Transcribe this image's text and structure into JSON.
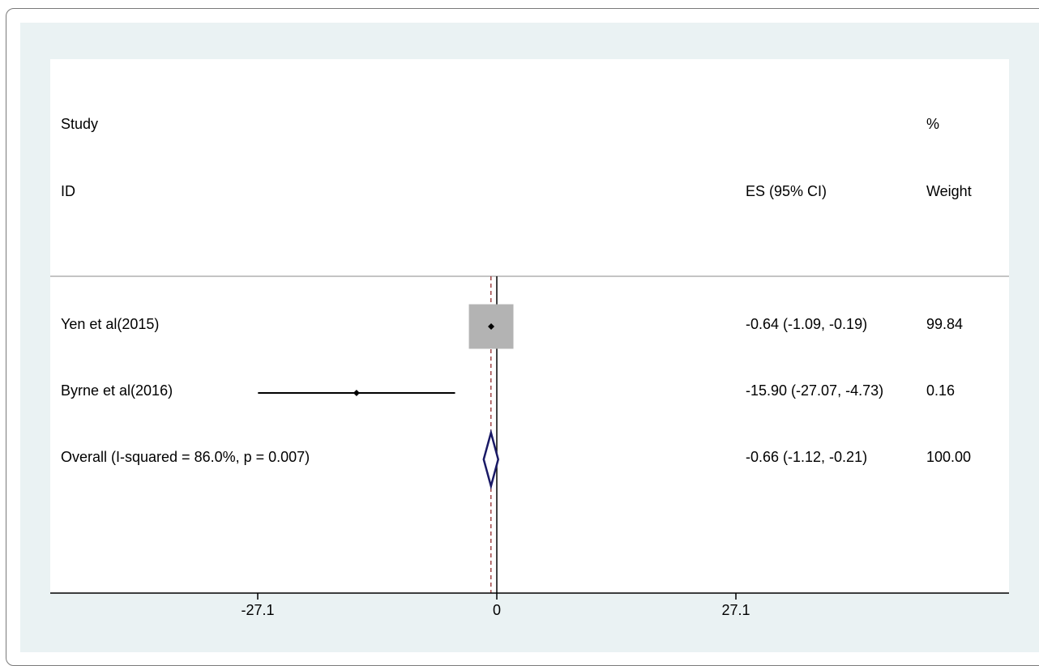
{
  "headers": {
    "study_line1": "Study",
    "study_line2": "ID",
    "es": "ES (95% CI)",
    "weight_line1": "%",
    "weight_line2": "Weight"
  },
  "colors": {
    "outer_background": "#eaf2f3",
    "plot_background": "#ffffff",
    "weight_box": "#b3b3b3",
    "overall_diamond": "#1a1a66",
    "overall_line": "#8b1a1a"
  },
  "chart_data": {
    "type": "forest",
    "x_ticks": [
      {
        "value": -27.1,
        "label": "-27.1"
      },
      {
        "value": 0,
        "label": "0"
      },
      {
        "value": 27.1,
        "label": "27.1"
      }
    ],
    "no_effect_line": 0,
    "overall_effect_line": -0.66,
    "studies": [
      {
        "label": "Yen et al(2015)",
        "es": -0.64,
        "lo": -1.09,
        "hi": -0.19,
        "ci_text": "-0.64 (-1.09, -0.19)",
        "weight": 99.84,
        "weight_text": "99.84"
      },
      {
        "label": "Byrne et al(2016)",
        "es": -15.9,
        "lo": -27.07,
        "hi": -4.73,
        "ci_text": "-15.90 (-27.07, -4.73)",
        "weight": 0.16,
        "weight_text": "0.16"
      }
    ],
    "overall": {
      "label": "Overall (I-squared = 86.0%, p = 0.007)",
      "es": -0.66,
      "lo": -1.12,
      "hi": -0.21,
      "ci_text": "-0.66 (-1.12, -0.21)",
      "weight_text": "100.00"
    }
  }
}
